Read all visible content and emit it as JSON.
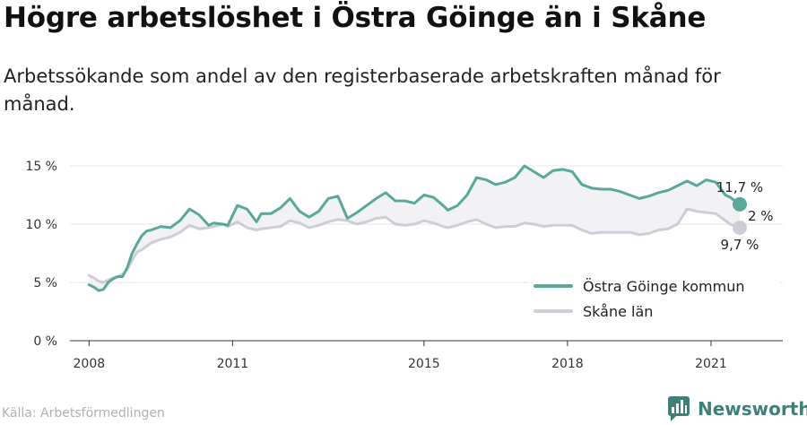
{
  "title": "Högre arbetslöshet i Östra Göinge än i Skåne",
  "subtitle": "Arbetssökande som andel av den registerbaserade arbetskraften månad för månad.",
  "source": "Källa: Arbetsförmedlingen",
  "brand": "Newsworthy",
  "colors": {
    "primary": "#5aa89a",
    "secondary": "#cdcdd6",
    "fill": "#f2f2f4",
    "brand": "#3f7f77"
  },
  "chart_data": {
    "type": "line",
    "xlim": [
      2007.6,
      2022.5
    ],
    "ylim": [
      0,
      15
    ],
    "y_ticks": [
      {
        "value": 0,
        "label": "0 %"
      },
      {
        "value": 5,
        "label": "5 %"
      },
      {
        "value": 10,
        "label": "10 %"
      },
      {
        "value": 15,
        "label": "15 %"
      }
    ],
    "x_ticks": [
      {
        "value": 2008,
        "label": "2008"
      },
      {
        "value": 2011,
        "label": "2011"
      },
      {
        "value": 2015,
        "label": "2015"
      },
      {
        "value": 2018,
        "label": "2018"
      },
      {
        "value": 2021,
        "label": "2021"
      }
    ],
    "grid": true,
    "legend_position": "bottom-right",
    "series": [
      {
        "name": "Östra Göinge kommun",
        "color": "#5aa89a",
        "x": [
          2008.0,
          2008.1,
          2008.2,
          2008.3,
          2008.4,
          2008.5,
          2008.6,
          2008.7,
          2008.8,
          2008.9,
          2009.0,
          2009.1,
          2009.2,
          2009.3,
          2009.5,
          2009.7,
          2009.9,
          2010.1,
          2010.3,
          2010.5,
          2010.6,
          2010.8,
          2010.9,
          2011.1,
          2011.3,
          2011.5,
          2011.6,
          2011.8,
          2012.0,
          2012.2,
          2012.4,
          2012.6,
          2012.8,
          2013.0,
          2013.2,
          2013.4,
          2013.6,
          2013.8,
          2014.0,
          2014.2,
          2014.4,
          2014.6,
          2014.8,
          2015.0,
          2015.2,
          2015.4,
          2015.5,
          2015.7,
          2015.9,
          2016.1,
          2016.3,
          2016.5,
          2016.7,
          2016.9,
          2017.1,
          2017.3,
          2017.5,
          2017.7,
          2017.9,
          2018.1,
          2018.3,
          2018.5,
          2018.7,
          2018.9,
          2019.1,
          2019.3,
          2019.5,
          2019.7,
          2019.9,
          2020.1,
          2020.3,
          2020.5,
          2020.7,
          2020.9,
          2021.1,
          2021.3,
          2021.4,
          2021.6
        ],
        "values": [
          4.8,
          4.6,
          4.3,
          4.4,
          5.0,
          5.3,
          5.5,
          5.5,
          6.3,
          7.5,
          8.3,
          9.0,
          9.4,
          9.5,
          9.8,
          9.7,
          10.3,
          11.3,
          10.8,
          9.9,
          10.1,
          10.0,
          9.9,
          11.6,
          11.3,
          10.2,
          10.9,
          10.9,
          11.4,
          12.2,
          11.1,
          10.6,
          11.1,
          12.2,
          12.4,
          10.5,
          11.0,
          11.6,
          12.2,
          12.7,
          12.0,
          12.0,
          11.8,
          12.5,
          12.3,
          11.6,
          11.2,
          11.6,
          12.5,
          14.0,
          13.8,
          13.4,
          13.6,
          14.0,
          15.0,
          14.5,
          14.0,
          14.6,
          14.7,
          14.5,
          13.4,
          13.1,
          13.0,
          13.0,
          12.8,
          12.5,
          12.2,
          12.4,
          12.7,
          12.9,
          13.3,
          13.7,
          13.3,
          13.8,
          13.6,
          12.5,
          12.3,
          11.7
        ]
      },
      {
        "name": "Skåne län",
        "color": "#cdcdd6",
        "x": [
          2008.0,
          2008.1,
          2008.2,
          2008.3,
          2008.4,
          2008.5,
          2008.6,
          2008.7,
          2008.8,
          2008.9,
          2009.0,
          2009.1,
          2009.2,
          2009.3,
          2009.5,
          2009.7,
          2009.9,
          2010.1,
          2010.3,
          2010.5,
          2010.6,
          2010.8,
          2010.9,
          2011.1,
          2011.3,
          2011.5,
          2011.6,
          2011.8,
          2012.0,
          2012.2,
          2012.4,
          2012.6,
          2012.8,
          2013.0,
          2013.2,
          2013.4,
          2013.6,
          2013.8,
          2014.0,
          2014.2,
          2014.4,
          2014.6,
          2014.8,
          2015.0,
          2015.2,
          2015.4,
          2015.5,
          2015.7,
          2015.9,
          2016.1,
          2016.3,
          2016.5,
          2016.7,
          2016.9,
          2017.1,
          2017.3,
          2017.5,
          2017.7,
          2017.9,
          2018.1,
          2018.3,
          2018.5,
          2018.7,
          2018.9,
          2019.1,
          2019.3,
          2019.5,
          2019.7,
          2019.9,
          2020.1,
          2020.3,
          2020.5,
          2020.7,
          2020.9,
          2021.1,
          2021.3,
          2021.4,
          2021.6
        ],
        "values": [
          5.6,
          5.4,
          5.1,
          5.0,
          5.2,
          5.4,
          5.5,
          5.7,
          6.1,
          6.9,
          7.6,
          7.8,
          8.1,
          8.4,
          8.7,
          8.9,
          9.3,
          9.9,
          9.6,
          9.7,
          9.8,
          10.0,
          9.8,
          10.2,
          9.7,
          9.5,
          9.6,
          9.7,
          9.8,
          10.3,
          10.1,
          9.7,
          9.9,
          10.2,
          10.4,
          10.3,
          10.0,
          10.2,
          10.5,
          10.6,
          10.0,
          9.9,
          10.0,
          10.3,
          10.1,
          9.8,
          9.7,
          9.9,
          10.2,
          10.4,
          10.0,
          9.7,
          9.8,
          9.8,
          10.1,
          10.0,
          9.8,
          9.9,
          9.9,
          9.9,
          9.5,
          9.2,
          9.3,
          9.3,
          9.3,
          9.3,
          9.1,
          9.2,
          9.5,
          9.6,
          10.0,
          11.3,
          11.1,
          11.0,
          10.9,
          10.3,
          10.0,
          9.7
        ]
      }
    ],
    "annotations": {
      "primary_end_label": "11,7 %",
      "secondary_end_label": "9,7 %",
      "diff_label": "2 %"
    }
  }
}
